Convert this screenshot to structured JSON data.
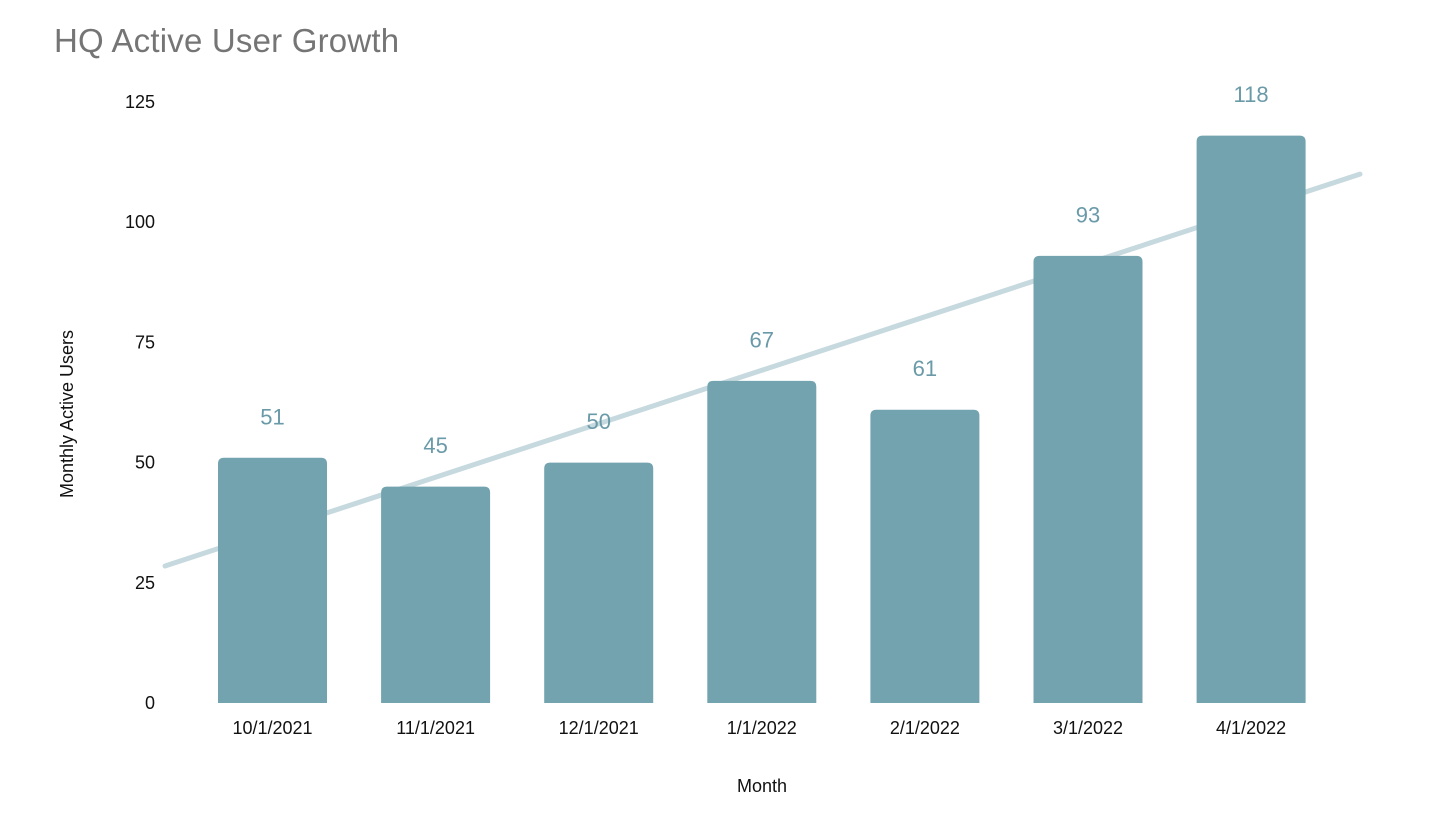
{
  "chart_data": {
    "type": "bar",
    "title": "HQ Active User Growth",
    "xlabel": "Month",
    "ylabel": "Monthly Active Users",
    "categories": [
      "10/1/2021",
      "11/1/2021",
      "12/1/2021",
      "1/1/2022",
      "2/1/2022",
      "3/1/2022",
      "4/1/2022"
    ],
    "values": [
      51,
      45,
      50,
      67,
      61,
      93,
      118
    ],
    "value_labels": [
      "51",
      "45",
      "50",
      "67",
      "61",
      "93",
      "118"
    ],
    "y_ticks": [
      0,
      25,
      50,
      75,
      100,
      125
    ],
    "ylim": [
      0,
      125
    ],
    "grid": false,
    "legend": false,
    "axis_lines": false,
    "trendline": {
      "type": "linear",
      "start_value": 28.5,
      "end_value": 110
    },
    "colors": {
      "bar": "#72a3af",
      "trendline": "#c6d9de",
      "value_label": "#6a9aa8",
      "title": "#757575",
      "axis_text": "#111111",
      "background": "#ffffff"
    }
  }
}
